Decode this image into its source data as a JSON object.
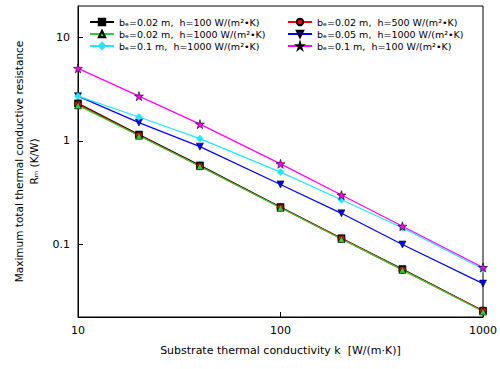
{
  "chart_data": {
    "type": "line",
    "log": true,
    "grid": false,
    "legend": "top",
    "x_label": "Substrate thermal conductivity k  [W/(m·K)]",
    "y_label": "Maximum total thermal conductive resistance\nRₘ (K/W)",
    "xlim": [
      10,
      1000
    ],
    "xticks": [
      10,
      100,
      1000
    ],
    "ylim": [
      0.02,
      20
    ],
    "yticks": [
      0.1,
      1,
      10
    ],
    "x": [
      10,
      20,
      40,
      100,
      200,
      400,
      1000
    ],
    "series": [
      {
        "name": "bₑ=0.02 m,  h=100 W/(m²•K)",
        "color": "#000000",
        "marker": "square",
        "values": [
          2.3,
          1.15,
          0.58,
          0.23,
          0.115,
          0.058,
          0.023
        ]
      },
      {
        "name": "bₑ=0.02 m,  h=500 W/(m²•K)",
        "color": "#ff0000",
        "marker": "circle",
        "values": [
          2.25,
          1.13,
          0.57,
          0.228,
          0.114,
          0.057,
          0.023
        ]
      },
      {
        "name": "bₑ=0.02 m,  h=1000 W/(m²•K)",
        "color": "#33cc33",
        "marker": "triangle",
        "values": [
          2.2,
          1.12,
          0.57,
          0.226,
          0.113,
          0.057,
          0.0226
        ]
      },
      {
        "name": "bₑ=0.05 m,  h=1000 W/(m²•K)",
        "color": "#0000ff",
        "marker": "triangle-down",
        "values": [
          2.7,
          1.5,
          0.88,
          0.38,
          0.2,
          0.1,
          0.042
        ]
      },
      {
        "name": "bₑ=0.1 m,  h=1000 W/(m²•K)",
        "color": "#22e6ff",
        "marker": "diamond",
        "values": [
          2.7,
          1.7,
          1.05,
          0.5,
          0.27,
          0.145,
          0.058
        ]
      },
      {
        "name": "bₑ=0.1 m,  h=100 W/(m²•K)",
        "color": "#ff00ff",
        "marker": "star",
        "values": [
          5,
          2.7,
          1.45,
          0.6,
          0.3,
          0.15,
          0.06
        ]
      }
    ]
  }
}
